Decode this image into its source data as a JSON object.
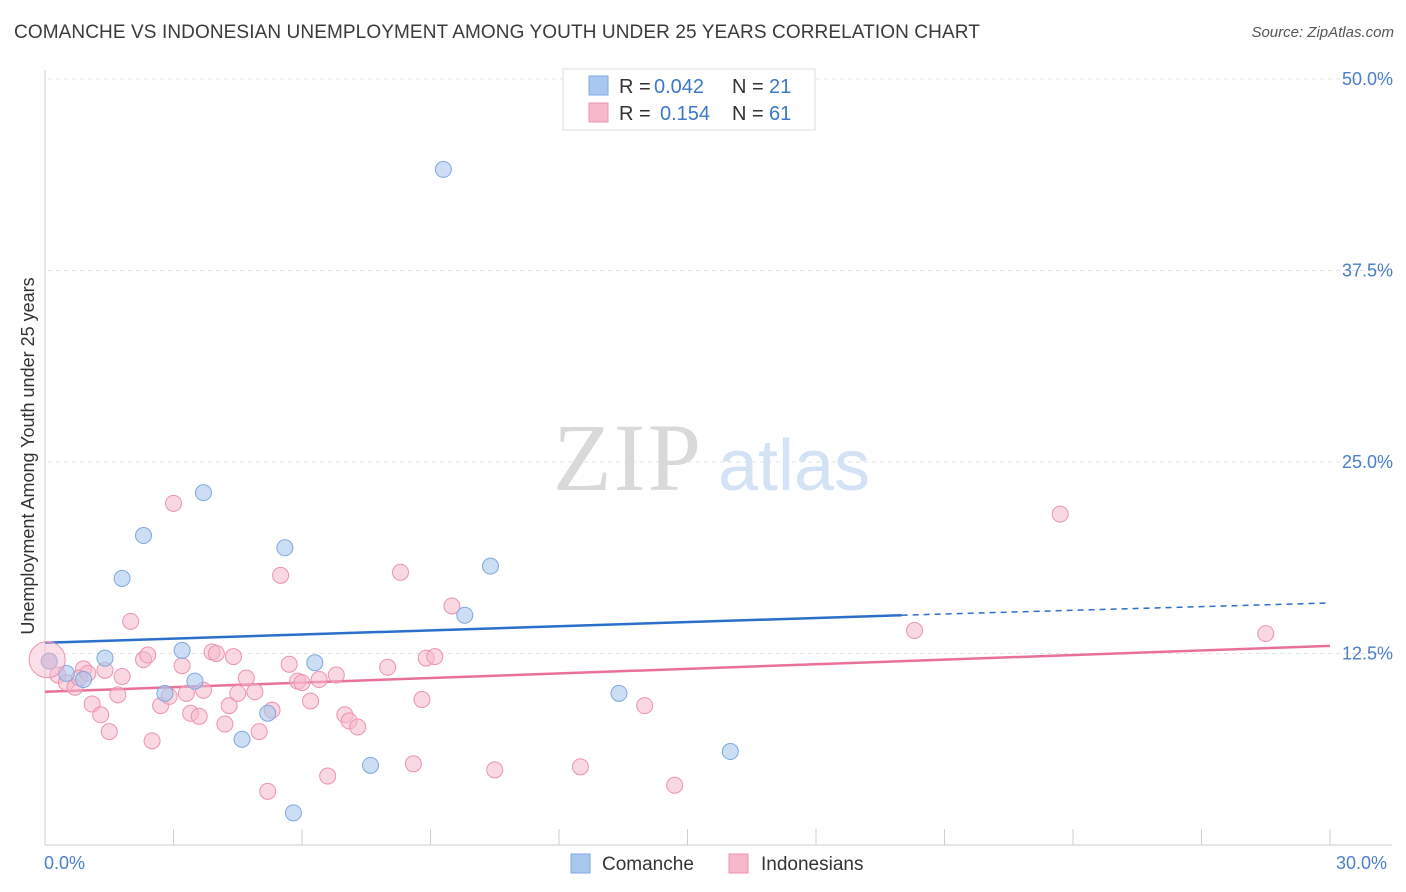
{
  "title": "COMANCHE VS INDONESIAN UNEMPLOYMENT AMONG YOUTH UNDER 25 YEARS CORRELATION CHART",
  "source": "Source: ZipAtlas.com",
  "watermark": {
    "zip": "ZIP",
    "atlas": "atlas"
  },
  "colors": {
    "comanche_fill": "#a9c8f0",
    "comanche_stroke": "#7fa8de",
    "comanche_line": "#2a6fc9",
    "indonesian_fill": "#f6b8cb",
    "indonesian_stroke": "#ec93b0",
    "indonesian_line": "#e8709a",
    "tick_text": "#4a7fc9"
  },
  "legend": {
    "rows": [
      {
        "r_label": "R =",
        "r_value": "0.042",
        "n_label": "N =",
        "n_value": "21"
      },
      {
        "r_label": "R =",
        "r_value": "0.154",
        "n_label": "N =",
        "n_value": "61"
      }
    ]
  },
  "bottom_legend": [
    "Comanche",
    "Indonesians"
  ],
  "chart_data": {
    "type": "scatter",
    "title": "COMANCHE VS INDONESIAN UNEMPLOYMENT AMONG YOUTH UNDER 25 YEARS CORRELATION CHART",
    "xlabel": "",
    "ylabel": "Unemployment Among Youth under 25 years",
    "xlim": [
      0,
      30
    ],
    "ylim": [
      0,
      52
    ],
    "x_tick_labels": [
      "0.0%",
      "30.0%"
    ],
    "y_ticks": [
      12.5,
      25.0,
      37.5,
      50.0
    ],
    "y_tick_labels": [
      "12.5%",
      "25.0%",
      "37.5%",
      "50.0%"
    ],
    "grid": true,
    "legend_position": "top-center",
    "series": [
      {
        "name": "Comanche",
        "r": 0.042,
        "n": 21,
        "trend": {
          "x0": 0,
          "y0": 13.2,
          "x1": 20,
          "y1": 15.0,
          "dashed_to_x": 30,
          "dashed_to_y": 15.8
        },
        "points": [
          [
            0.1,
            12.0
          ],
          [
            0.5,
            11.2
          ],
          [
            0.9,
            10.8
          ],
          [
            1.4,
            12.2
          ],
          [
            1.8,
            17.4
          ],
          [
            2.3,
            20.2
          ],
          [
            2.8,
            9.9
          ],
          [
            3.2,
            12.7
          ],
          [
            3.5,
            10.7
          ],
          [
            3.7,
            23.0
          ],
          [
            4.6,
            6.9
          ],
          [
            5.2,
            8.6
          ],
          [
            5.6,
            19.4
          ],
          [
            6.3,
            11.9
          ],
          [
            7.6,
            5.2
          ],
          [
            9.3,
            44.1
          ],
          [
            9.8,
            15.0
          ],
          [
            10.4,
            18.2
          ],
          [
            13.4,
            9.9
          ],
          [
            16.0,
            6.1
          ],
          [
            5.8,
            2.1
          ]
        ]
      },
      {
        "name": "Indonesians",
        "r": 0.154,
        "n": 61,
        "trend": {
          "x0": 0,
          "y0": 10.0,
          "x1": 30,
          "y1": 13.0
        },
        "points": [
          [
            0.1,
            12.0
          ],
          [
            0.3,
            11.1
          ],
          [
            0.5,
            10.6
          ],
          [
            0.7,
            10.3
          ],
          [
            0.9,
            11.5
          ],
          [
            1.1,
            9.2
          ],
          [
            1.3,
            8.5
          ],
          [
            1.4,
            11.4
          ],
          [
            1.5,
            7.4
          ],
          [
            1.7,
            9.8
          ],
          [
            1.8,
            11.0
          ],
          [
            2.0,
            14.6
          ],
          [
            2.3,
            12.1
          ],
          [
            2.4,
            12.4
          ],
          [
            2.5,
            6.8
          ],
          [
            2.7,
            9.1
          ],
          [
            2.9,
            9.7
          ],
          [
            3.0,
            22.3
          ],
          [
            3.2,
            11.7
          ],
          [
            3.3,
            9.9
          ],
          [
            3.4,
            8.6
          ],
          [
            3.6,
            8.4
          ],
          [
            3.7,
            10.1
          ],
          [
            3.9,
            12.6
          ],
          [
            4.0,
            12.5
          ],
          [
            4.2,
            7.9
          ],
          [
            4.3,
            9.1
          ],
          [
            4.4,
            12.3
          ],
          [
            4.5,
            9.9
          ],
          [
            4.7,
            10.9
          ],
          [
            4.9,
            10.0
          ],
          [
            5.0,
            7.4
          ],
          [
            5.2,
            3.5
          ],
          [
            5.3,
            8.8
          ],
          [
            5.5,
            17.6
          ],
          [
            5.7,
            11.8
          ],
          [
            5.9,
            10.7
          ],
          [
            6.2,
            9.4
          ],
          [
            6.4,
            10.8
          ],
          [
            6.6,
            4.5
          ],
          [
            6.8,
            11.1
          ],
          [
            7.0,
            8.5
          ],
          [
            7.1,
            8.1
          ],
          [
            7.3,
            7.7
          ],
          [
            8.0,
            11.6
          ],
          [
            8.3,
            17.8
          ],
          [
            8.6,
            5.3
          ],
          [
            8.8,
            9.5
          ],
          [
            8.9,
            12.2
          ],
          [
            9.1,
            12.3
          ],
          [
            9.5,
            15.6
          ],
          [
            10.5,
            4.9
          ],
          [
            12.5,
            5.1
          ],
          [
            14.0,
            9.1
          ],
          [
            14.7,
            3.9
          ],
          [
            20.3,
            14.0
          ],
          [
            23.7,
            21.6
          ],
          [
            28.5,
            13.8
          ],
          [
            0.8,
            10.9
          ],
          [
            1.0,
            11.2
          ],
          [
            6.0,
            10.6
          ]
        ]
      }
    ]
  }
}
